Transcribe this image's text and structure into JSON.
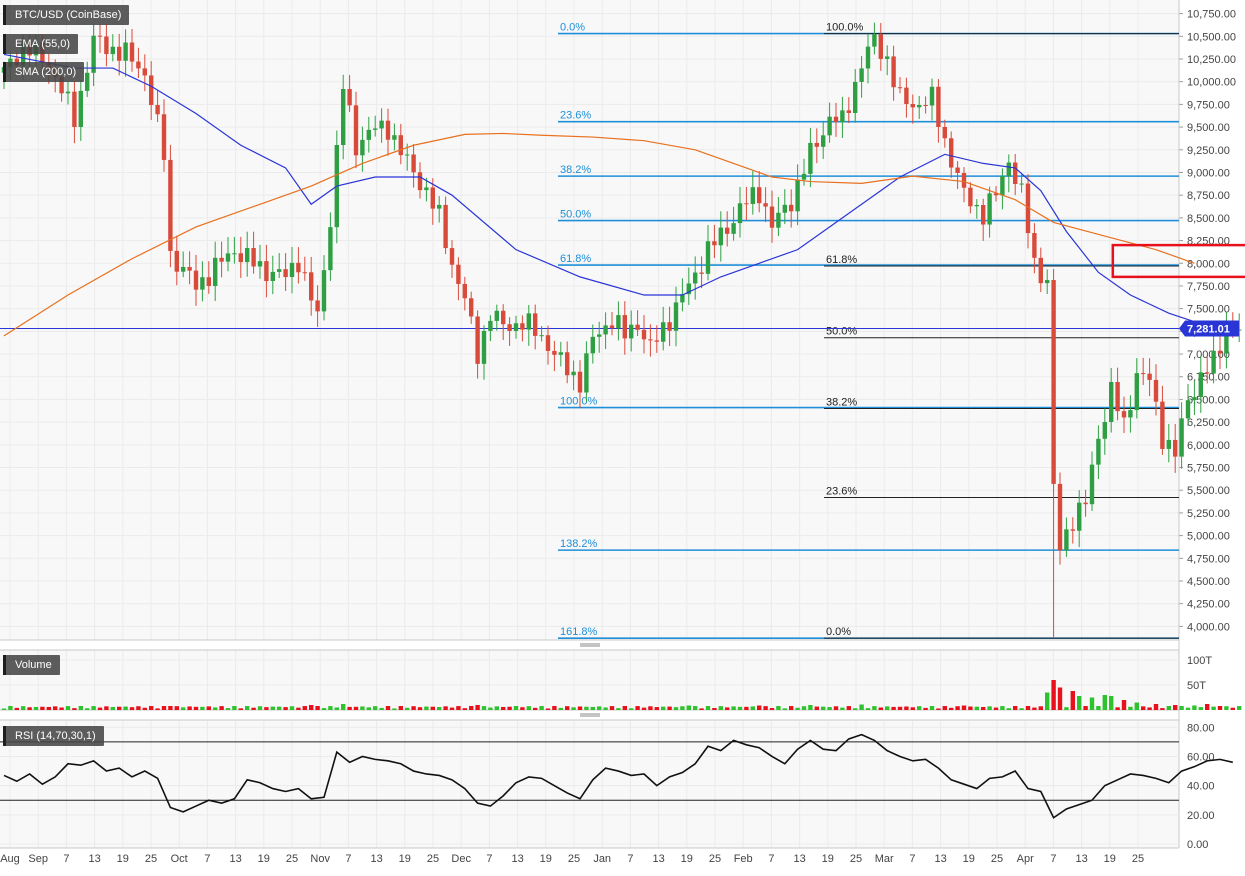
{
  "chart_data": {
    "type": "candlestick",
    "symbol_label": "BTC/USD (CoinBase)",
    "indicators": [
      {
        "name": "EMA (55,0)",
        "color": "#2a35d6"
      },
      {
        "name": "SMA (200,0)",
        "color": "#e8701e"
      }
    ],
    "last_price": "7,281.01",
    "y_axis": {
      "min": 3850,
      "max": 10900,
      "ticks": [
        "4,000.00",
        "4,250.00",
        "4,500.00",
        "4,750.00",
        "5,000.00",
        "5,250.00",
        "5,500.00",
        "5,750.00",
        "6,000.00",
        "6,250.00",
        "6,500.00",
        "6,750.00",
        "7,000.00",
        "7,250.00",
        "7,500.00",
        "7,750.00",
        "8,000.00",
        "8,250.00",
        "8,500.00",
        "8,750.00",
        "9,000.00",
        "9,250.00",
        "9,500.00",
        "9,750.00",
        "10,000.00",
        "10,250.00",
        "10,500.00",
        "10,750.00"
      ]
    },
    "x_axis": {
      "labels": [
        "Aug",
        "Sep",
        "7",
        "13",
        "19",
        "25",
        "Oct",
        "7",
        "13",
        "19",
        "25",
        "Nov",
        "7",
        "13",
        "19",
        "25",
        "Dec",
        "7",
        "13",
        "19",
        "25",
        "Jan",
        "7",
        "13",
        "19",
        "25",
        "Feb",
        "7",
        "13",
        "19",
        "25",
        "Mar",
        "7",
        "13",
        "19",
        "25",
        "Apr",
        "7",
        "13",
        "19",
        "25"
      ]
    },
    "price_path": [
      [
        0,
        10100
      ],
      [
        3,
        10400
      ],
      [
        7,
        10200
      ],
      [
        11,
        9600
      ],
      [
        14,
        10450
      ],
      [
        19,
        10300
      ],
      [
        22,
        10100
      ],
      [
        25,
        9200
      ],
      [
        26,
        8100
      ],
      [
        30,
        7750
      ],
      [
        36,
        8150
      ],
      [
        40,
        7950
      ],
      [
        44,
        7850
      ],
      [
        46,
        8050
      ],
      [
        48,
        7600
      ],
      [
        49,
        7400
      ],
      [
        51,
        8500
      ],
      [
        53,
        9950
      ],
      [
        55,
        9300
      ],
      [
        57,
        9450
      ],
      [
        60,
        9500
      ],
      [
        63,
        9100
      ],
      [
        66,
        8800
      ],
      [
        68,
        8500
      ],
      [
        70,
        8000
      ],
      [
        72,
        7600
      ],
      [
        74,
        7000
      ],
      [
        76,
        7450
      ],
      [
        78,
        7300
      ],
      [
        81,
        7350
      ],
      [
        84,
        7200
      ],
      [
        87,
        6900
      ],
      [
        90,
        6700
      ],
      [
        92,
        7150
      ],
      [
        95,
        7400
      ],
      [
        97,
        7200
      ],
      [
        99,
        7350
      ],
      [
        101,
        7050
      ],
      [
        104,
        7400
      ],
      [
        107,
        7750
      ],
      [
        110,
        8150
      ],
      [
        112,
        8300
      ],
      [
        115,
        8600
      ],
      [
        118,
        8800
      ],
      [
        120,
        8400
      ],
      [
        123,
        8700
      ],
      [
        126,
        9200
      ],
      [
        129,
        9600
      ],
      [
        131,
        9550
      ],
      [
        134,
        10200
      ],
      [
        136,
        10450
      ],
      [
        138,
        10250
      ],
      [
        140,
        9800
      ],
      [
        142,
        9750
      ],
      [
        145,
        9800
      ],
      [
        147,
        9350
      ],
      [
        150,
        8750
      ],
      [
        153,
        8550
      ],
      [
        155,
        8750
      ],
      [
        157,
        9150
      ],
      [
        159,
        8750
      ],
      [
        161,
        8000
      ],
      [
        163,
        7800
      ],
      [
        164,
        5500
      ],
      [
        165,
        4850
      ],
      [
        167,
        5200
      ],
      [
        169,
        5350
      ],
      [
        171,
        6100
      ],
      [
        173,
        6600
      ],
      [
        175,
        6200
      ],
      [
        177,
        6800
      ],
      [
        179,
        6700
      ],
      [
        181,
        6100
      ],
      [
        183,
        5900
      ],
      [
        185,
        6500
      ],
      [
        187,
        6750
      ],
      [
        189,
        6900
      ],
      [
        191,
        7300
      ],
      [
        193,
        7250
      ]
    ],
    "ema_55": [
      [
        0,
        10300
      ],
      [
        11,
        10150
      ],
      [
        17,
        10150
      ],
      [
        23,
        9950
      ],
      [
        30,
        9650
      ],
      [
        37,
        9300
      ],
      [
        44,
        9050
      ],
      [
        48,
        8650
      ],
      [
        52,
        8850
      ],
      [
        58,
        8950
      ],
      [
        65,
        8950
      ],
      [
        70,
        8750
      ],
      [
        80,
        8150
      ],
      [
        90,
        7850
      ],
      [
        100,
        7650
      ],
      [
        106,
        7650
      ],
      [
        112,
        7850
      ],
      [
        118,
        8000
      ],
      [
        124,
        8150
      ],
      [
        128,
        8350
      ],
      [
        134,
        8650
      ],
      [
        140,
        8950
      ],
      [
        147,
        9200
      ],
      [
        153,
        9100
      ],
      [
        158,
        9050
      ],
      [
        162,
        8800
      ],
      [
        166,
        8350
      ],
      [
        171,
        7900
      ],
      [
        176,
        7650
      ],
      [
        182,
        7450
      ],
      [
        188,
        7310
      ],
      [
        193,
        7270
      ]
    ],
    "sma_200": [
      [
        0,
        7200
      ],
      [
        10,
        7650
      ],
      [
        20,
        8050
      ],
      [
        30,
        8400
      ],
      [
        40,
        8650
      ],
      [
        48,
        8850
      ],
      [
        56,
        9100
      ],
      [
        64,
        9300
      ],
      [
        72,
        9420
      ],
      [
        78,
        9430
      ],
      [
        84,
        9410
      ],
      [
        92,
        9390
      ],
      [
        100,
        9350
      ],
      [
        108,
        9250
      ],
      [
        114,
        9100
      ],
      [
        120,
        8950
      ],
      [
        126,
        8900
      ],
      [
        134,
        8880
      ],
      [
        142,
        8960
      ],
      [
        150,
        8900
      ],
      [
        158,
        8700
      ],
      [
        164,
        8450
      ],
      [
        172,
        8300
      ],
      [
        180,
        8150
      ],
      [
        186,
        8000
      ]
    ],
    "fib_blue": [
      {
        "label": "0.0%",
        "value": 10530
      },
      {
        "label": "23.6%",
        "value": 9560
      },
      {
        "label": "38.2%",
        "value": 8960
      },
      {
        "label": "50.0%",
        "value": 8470
      },
      {
        "label": "61.8%",
        "value": 7980
      },
      {
        "label": "100.0%",
        "value": 6410
      },
      {
        "label": "138.2%",
        "value": 4840
      },
      {
        "label": "161.8%",
        "value": 3870
      }
    ],
    "fib_black": [
      {
        "label": "100.0%",
        "value": 10530
      },
      {
        "label": "61.8%",
        "value": 7970
      },
      {
        "label": "50.0%",
        "value": 7180
      },
      {
        "label": "38.2%",
        "value": 6400
      },
      {
        "label": "23.6%",
        "value": 5420
      },
      {
        "label": "0.0%",
        "value": 3870
      }
    ],
    "highlight_zone": {
      "from": 7850,
      "to": 8200,
      "start_day": 177,
      "end_day": 200
    },
    "volume_panel": {
      "label": "Volume",
      "ticks": [
        "50T",
        "100T"
      ],
      "max": 120,
      "spikes": [
        [
          5,
          6
        ],
        [
          26,
          8
        ],
        [
          48,
          10
        ],
        [
          53,
          12
        ],
        [
          74,
          10
        ],
        [
          80,
          8
        ],
        [
          107,
          9
        ],
        [
          118,
          9
        ],
        [
          126,
          10
        ],
        [
          134,
          11
        ],
        [
          150,
          9
        ],
        [
          160,
          8
        ],
        [
          163,
          35
        ],
        [
          164,
          60
        ],
        [
          165,
          45
        ],
        [
          167,
          38
        ],
        [
          168,
          28
        ],
        [
          170,
          25
        ],
        [
          172,
          30
        ],
        [
          173,
          28
        ],
        [
          175,
          20
        ],
        [
          177,
          15
        ],
        [
          180,
          12
        ],
        [
          183,
          10
        ],
        [
          186,
          9
        ],
        [
          188,
          12
        ],
        [
          190,
          8
        ]
      ]
    },
    "rsi_panel": {
      "label": "RSI (14,70,30,1)",
      "ticks": [
        "0.00",
        "20.00",
        "40.00",
        "60.00",
        "80.00"
      ],
      "overbought": 70,
      "oversold": 30,
      "values": [
        [
          0,
          47
        ],
        [
          2,
          43
        ],
        [
          4,
          48
        ],
        [
          6,
          41
        ],
        [
          8,
          46
        ],
        [
          10,
          55
        ],
        [
          12,
          54
        ],
        [
          14,
          57
        ],
        [
          16,
          50
        ],
        [
          18,
          52
        ],
        [
          20,
          46
        ],
        [
          22,
          50
        ],
        [
          24,
          45
        ],
        [
          26,
          25
        ],
        [
          28,
          22
        ],
        [
          30,
          26
        ],
        [
          32,
          30
        ],
        [
          34,
          28
        ],
        [
          36,
          31
        ],
        [
          38,
          44
        ],
        [
          40,
          42
        ],
        [
          42,
          38
        ],
        [
          44,
          36
        ],
        [
          46,
          38
        ],
        [
          48,
          31
        ],
        [
          50,
          32
        ],
        [
          52,
          63
        ],
        [
          54,
          56
        ],
        [
          56,
          60
        ],
        [
          58,
          58
        ],
        [
          60,
          57
        ],
        [
          62,
          55
        ],
        [
          64,
          50
        ],
        [
          66,
          48
        ],
        [
          68,
          47
        ],
        [
          70,
          44
        ],
        [
          72,
          38
        ],
        [
          74,
          28
        ],
        [
          76,
          26
        ],
        [
          78,
          33
        ],
        [
          80,
          42
        ],
        [
          82,
          46
        ],
        [
          84,
          45
        ],
        [
          86,
          40
        ],
        [
          88,
          35
        ],
        [
          90,
          31
        ],
        [
          92,
          44
        ],
        [
          94,
          52
        ],
        [
          96,
          50
        ],
        [
          98,
          47
        ],
        [
          100,
          48
        ],
        [
          102,
          40
        ],
        [
          104,
          46
        ],
        [
          106,
          49
        ],
        [
          108,
          55
        ],
        [
          110,
          67
        ],
        [
          112,
          64
        ],
        [
          114,
          71
        ],
        [
          116,
          68
        ],
        [
          118,
          66
        ],
        [
          120,
          60
        ],
        [
          122,
          55
        ],
        [
          124,
          65
        ],
        [
          126,
          71
        ],
        [
          128,
          65
        ],
        [
          130,
          64
        ],
        [
          132,
          72
        ],
        [
          134,
          75
        ],
        [
          136,
          71
        ],
        [
          138,
          64
        ],
        [
          140,
          60
        ],
        [
          142,
          57
        ],
        [
          144,
          58
        ],
        [
          146,
          52
        ],
        [
          148,
          44
        ],
        [
          150,
          41
        ],
        [
          152,
          38
        ],
        [
          154,
          45
        ],
        [
          156,
          46
        ],
        [
          158,
          50
        ],
        [
          160,
          38
        ],
        [
          162,
          36
        ],
        [
          164,
          18
        ],
        [
          166,
          24
        ],
        [
          168,
          27
        ],
        [
          170,
          30
        ],
        [
          172,
          40
        ],
        [
          174,
          44
        ],
        [
          176,
          48
        ],
        [
          178,
          47
        ],
        [
          180,
          45
        ],
        [
          182,
          42
        ],
        [
          184,
          50
        ],
        [
          186,
          53
        ],
        [
          188,
          57
        ],
        [
          190,
          58
        ],
        [
          192,
          56
        ]
      ]
    }
  }
}
